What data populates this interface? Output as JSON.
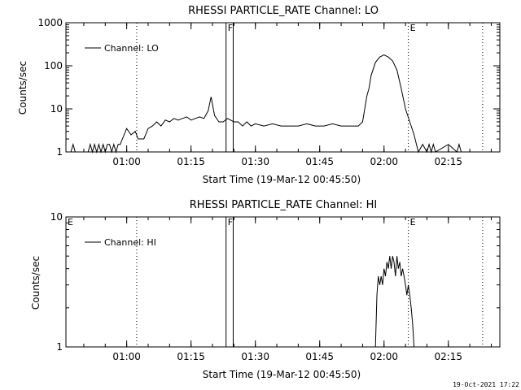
{
  "chart_data": [
    {
      "type": "line",
      "title": "RHESSI PARTICLE_RATE Channel: LO",
      "xlabel": "Start Time (19-Mar-12 00:45:50)",
      "ylabel": "Counts/sec",
      "yscale": "log",
      "ylim": [
        1,
        1000
      ],
      "xlim": [
        "00:45:50",
        "02:27:00"
      ],
      "x_ticks": [
        "01:00",
        "01:15",
        "01:30",
        "01:45",
        "02:00",
        "02:15"
      ],
      "y_ticks": [
        "1",
        "10",
        "100",
        "1000"
      ],
      "legend_position": "top-left",
      "markers": [
        {
          "label": "F",
          "times": [
            "01:23:10",
            "01:24:50"
          ],
          "style": "solid"
        },
        {
          "label": "E",
          "times": [
            "02:05:40"
          ],
          "style": "dotted"
        },
        {
          "label": "",
          "times": [
            "01:02:20"
          ],
          "style": "dotted"
        },
        {
          "label": "",
          "times": [
            "02:23:00"
          ],
          "style": "dotted"
        }
      ],
      "series": [
        {
          "name": "Channel: LO",
          "x": [
            "00:47:00",
            "00:47:30",
            "00:48:00",
            "00:51:00",
            "00:51:30",
            "00:52:00",
            "00:52:30",
            "00:53:00",
            "00:53:30",
            "00:54:00",
            "00:54:30",
            "00:55:00",
            "00:55:30",
            "00:56:00",
            "00:56:30",
            "00:57:00",
            "00:57:30",
            "00:58:00",
            "00:58:30",
            "00:59:00",
            "01:00:00",
            "01:01:00",
            "01:02:00",
            "01:02:40",
            "01:03:20",
            "01:04:00",
            "01:05:00",
            "01:06:00",
            "01:07:00",
            "01:08:00",
            "01:09:00",
            "01:10:00",
            "01:11:00",
            "01:12:00",
            "01:13:00",
            "01:14:00",
            "01:15:00",
            "01:16:00",
            "01:17:00",
            "01:18:00",
            "01:19:00",
            "01:19:40",
            "01:20:30",
            "01:21:30",
            "01:22:30",
            "01:23:30",
            "01:25:00",
            "01:26:00",
            "01:27:00",
            "01:28:00",
            "01:29:00",
            "01:30:00",
            "01:32:00",
            "01:34:00",
            "01:36:00",
            "01:38:00",
            "01:40:00",
            "01:42:00",
            "01:44:00",
            "01:46:00",
            "01:48:00",
            "01:50:00",
            "01:52:00",
            "01:54:00",
            "01:55:00",
            "01:56:00",
            "01:56:30",
            "01:57:00",
            "01:58:00",
            "01:59:00",
            "02:00:00",
            "02:01:00",
            "02:02:00",
            "02:03:00",
            "02:04:00",
            "02:05:00",
            "02:06:00",
            "02:07:00",
            "02:08:00",
            "02:09:00",
            "02:10:00",
            "02:10:30",
            "02:11:00",
            "02:11:30",
            "02:12:00",
            "02:15:00",
            "02:17:00",
            "02:17:30",
            "02:18:00"
          ],
          "values": [
            1,
            1.5,
            1,
            1,
            1.5,
            1,
            1.5,
            1,
            1.5,
            1,
            1.5,
            1,
            1.5,
            1.5,
            1,
            1.5,
            1,
            1.5,
            1.5,
            2,
            3.5,
            2.5,
            3,
            2,
            2,
            2,
            3.5,
            4,
            5,
            4,
            5.5,
            5,
            6,
            5.5,
            6,
            6.5,
            5.5,
            6,
            6.5,
            6,
            9,
            19,
            7,
            5,
            5,
            6,
            5,
            5,
            4,
            5,
            4,
            4.5,
            4,
            4.5,
            4,
            4,
            4,
            4.5,
            4,
            4,
            4.5,
            4,
            4,
            4,
            5,
            20,
            30,
            60,
            120,
            160,
            180,
            160,
            130,
            80,
            30,
            10,
            5,
            2.5,
            1,
            1.5,
            1,
            1.5,
            1,
            1.5,
            1,
            1.5,
            1,
            1.5,
            1
          ]
        }
      ]
    },
    {
      "type": "line",
      "title": "RHESSI PARTICLE_RATE Channel: HI",
      "xlabel": "Start Time (19-Mar-12 00:45:50)",
      "ylabel": "Counts/sec",
      "yscale": "log",
      "ylim": [
        1,
        10
      ],
      "xlim": [
        "00:45:50",
        "02:27:00"
      ],
      "x_ticks": [
        "01:00",
        "01:15",
        "01:30",
        "01:45",
        "02:00",
        "02:15"
      ],
      "y_ticks": [
        "1",
        "10"
      ],
      "legend_position": "top-left",
      "markers": [
        {
          "label": "E",
          "times": [
            "00:45:50"
          ],
          "style": "none"
        },
        {
          "label": "F",
          "times": [
            "01:23:10",
            "01:24:50"
          ],
          "style": "solid"
        },
        {
          "label": "E",
          "times": [
            "02:05:40"
          ],
          "style": "dotted"
        },
        {
          "label": "",
          "times": [
            "01:02:20"
          ],
          "style": "dotted"
        },
        {
          "label": "",
          "times": [
            "02:23:00"
          ],
          "style": "dotted"
        }
      ],
      "series": [
        {
          "name": "Channel: HI",
          "x": [
            "01:58:00",
            "01:58:20",
            "01:58:40",
            "01:59:00",
            "01:59:20",
            "01:59:40",
            "02:00:00",
            "02:00:20",
            "02:00:40",
            "02:01:00",
            "02:01:20",
            "02:01:40",
            "02:02:00",
            "02:02:20",
            "02:02:40",
            "02:03:00",
            "02:03:20",
            "02:03:40",
            "02:04:00",
            "02:04:20",
            "02:04:40",
            "02:05:00",
            "02:05:20",
            "02:05:40",
            "02:06:00",
            "02:06:20",
            "02:06:40",
            "02:07:00"
          ],
          "values": [
            1,
            2.5,
            3.5,
            3,
            3.5,
            3,
            4,
            3.5,
            4.5,
            4,
            5,
            4,
            5,
            4.5,
            3.5,
            5,
            4,
            4.5,
            3.5,
            4,
            3.5,
            3,
            2.5,
            3,
            2.5,
            2,
            1.5,
            1
          ]
        }
      ]
    }
  ],
  "footer": {
    "date": "19-Oct-2021 17:22"
  }
}
